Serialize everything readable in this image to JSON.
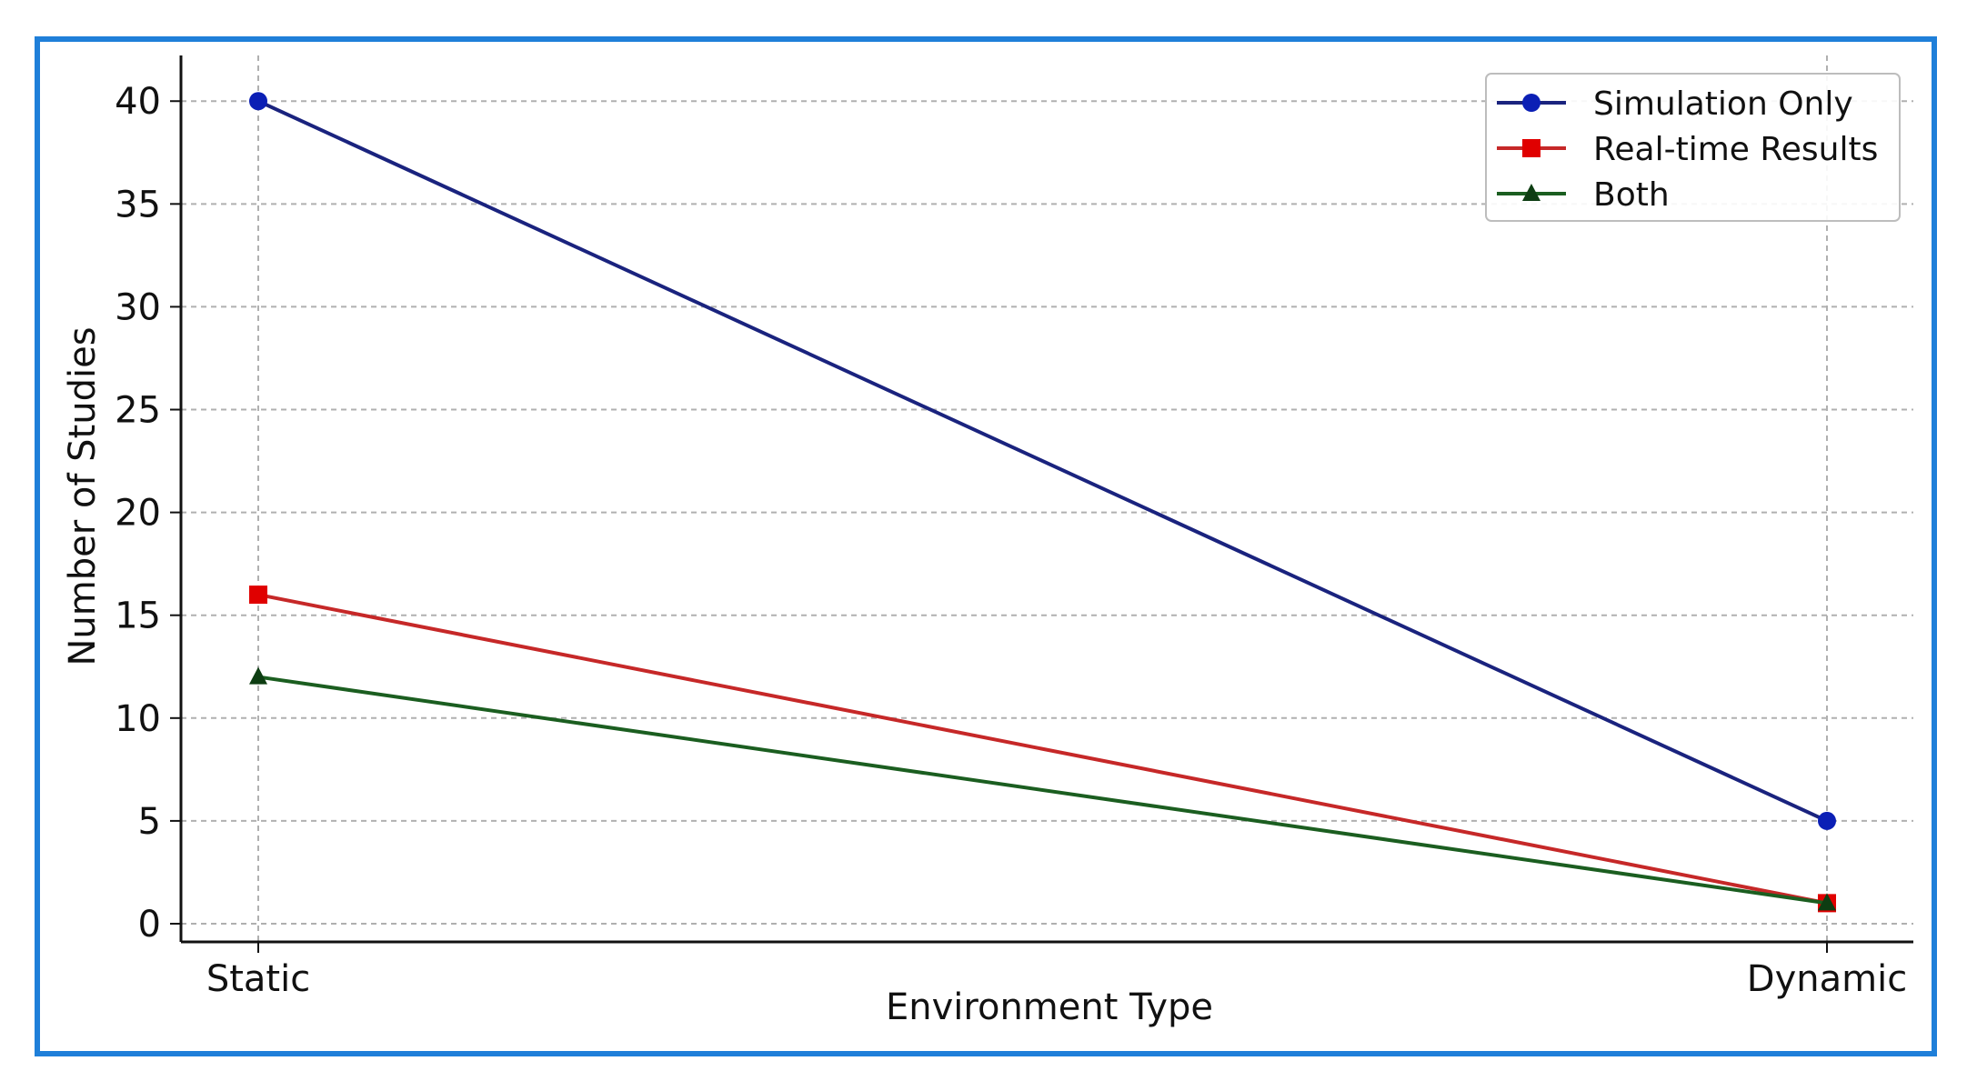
{
  "chart_data": {
    "type": "line",
    "categories": [
      "Static",
      "Dynamic"
    ],
    "series": [
      {
        "name": "Simulation Only",
        "values": [
          40,
          5
        ],
        "color": "#1a237e",
        "marker": "circle",
        "marker_color": "#0b1fb5"
      },
      {
        "name": "Real-time Results",
        "values": [
          16,
          1
        ],
        "color": "#c62828",
        "marker": "square",
        "marker_color": "#e00000"
      },
      {
        "name": "Both",
        "values": [
          12,
          1
        ],
        "color": "#1b5e20",
        "marker": "triangle",
        "marker_color": "#0d3d12"
      }
    ],
    "xlabel": "Environment Type",
    "ylabel": "Number of Studies",
    "ylim": [
      0,
      42
    ],
    "yticks": [
      0,
      5,
      10,
      15,
      20,
      25,
      30,
      35,
      40
    ],
    "grid": true,
    "legend_position": "top-right"
  }
}
